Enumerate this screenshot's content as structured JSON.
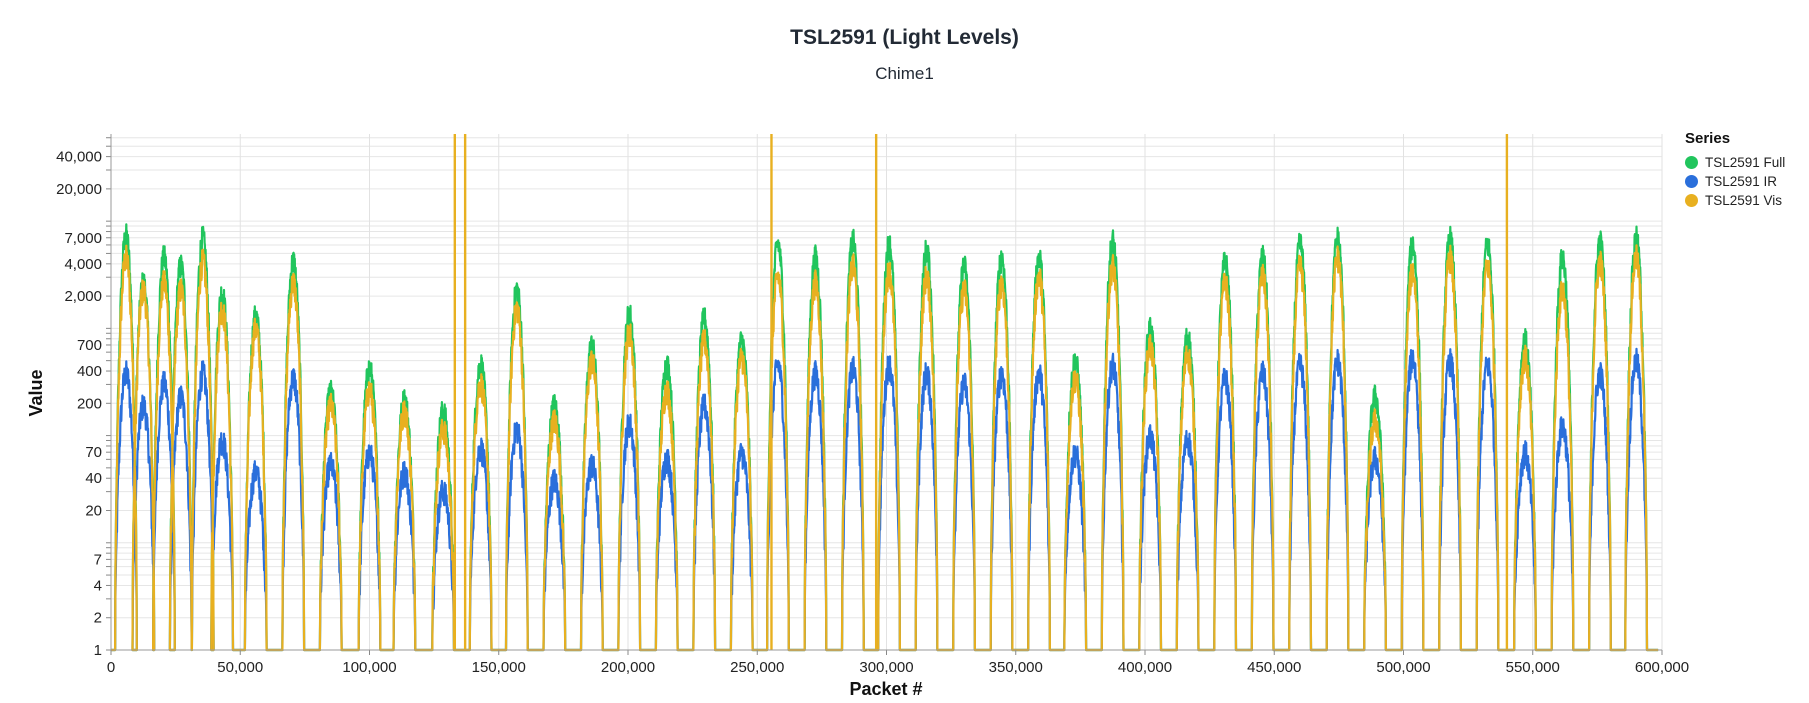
{
  "chart_data": {
    "type": "line",
    "title": "TSL2591 (Light Levels)",
    "subtitle": "Chime1",
    "xlabel": "Packet #",
    "ylabel": "Value",
    "y_scale": "log",
    "xlim": [
      0,
      600000
    ],
    "ylim": [
      1,
      65000
    ],
    "x_ticks": [
      0,
      50000,
      100000,
      150000,
      200000,
      250000,
      300000,
      350000,
      400000,
      450000,
      500000,
      550000,
      600000
    ],
    "x_tick_labels": [
      "0",
      "50,000",
      "100,000",
      "150,000",
      "200,000",
      "250,000",
      "300,000",
      "350,000",
      "400,000",
      "450,000",
      "500,000",
      "550,000",
      "600,000"
    ],
    "y_ticks": [
      1,
      2,
      4,
      7,
      20,
      40,
      70,
      200,
      400,
      700,
      2000,
      4000,
      7000,
      20000,
      40000
    ],
    "y_tick_labels": [
      "1",
      "2",
      "4",
      "7",
      "20",
      "40",
      "70",
      "200",
      "400",
      "700",
      "2,000",
      "4,000",
      "7,000",
      "20,000",
      "40,000"
    ],
    "grid": true,
    "legend": {
      "title": "Series",
      "placement": "right"
    },
    "series": [
      {
        "name": "TSL2591 Full",
        "color": "#21c55d"
      },
      {
        "name": "TSL2591 IR",
        "color": "#2a6fdb"
      },
      {
        "name": "TSL2591 Vis",
        "color": "#e8b020"
      }
    ],
    "daily_peaks": {
      "note_x": "center of each daytime cycle (packet #)",
      "x": [
        5800,
        12500,
        20500,
        27000,
        35500,
        43000,
        56000,
        70500,
        85000,
        100000,
        113500,
        128500,
        143000,
        157000,
        171500,
        186000,
        200500,
        215000,
        229500,
        244000,
        258000,
        272500,
        287000,
        301000,
        315500,
        330000,
        344500,
        359000,
        373000,
        387500,
        402000,
        416500,
        431000,
        445500,
        460000,
        474500,
        489000,
        503500,
        518000,
        532500,
        547000,
        561500,
        576000,
        590000
      ],
      "full": [
        9500,
        3500,
        6000,
        5000,
        9000,
        2800,
        1700,
        5500,
        330,
        550,
        280,
        220,
        600,
        3000,
        250,
        900,
        1800,
        600,
        1600,
        1000,
        8000,
        6000,
        8500,
        8000,
        7000,
        5000,
        6000,
        6000,
        650,
        8500,
        1300,
        1100,
        5500,
        6000,
        8000,
        9000,
        300,
        8000,
        9000,
        8000,
        1000,
        6000,
        8500,
        9000
      ],
      "ir": [
        500,
        250,
        400,
        300,
        500,
        120,
        60,
        450,
        70,
        90,
        60,
        40,
        100,
        150,
        50,
        70,
        170,
        80,
        250,
        90,
        600,
        500,
        550,
        600,
        500,
        400,
        500,
        500,
        90,
        600,
        130,
        120,
        450,
        500,
        600,
        650,
        80,
        700,
        650,
        600,
        90,
        160,
        500,
        650
      ],
      "vis": [
        6000,
        3000,
        3500,
        3000,
        5500,
        2000,
        1300,
        3500,
        250,
        350,
        220,
        150,
        400,
        2000,
        180,
        650,
        1200,
        350,
        1000,
        700,
        4000,
        3500,
        5000,
        4500,
        4000,
        3000,
        3500,
        4000,
        450,
        5000,
        900,
        750,
        3500,
        4000,
        5000,
        6000,
        180,
        4500,
        6000,
        5000,
        700,
        3000,
        5500,
        6000
      ]
    },
    "vis_spikes": {
      "note": "Vis series spikes to the top of the plot",
      "x": [
        133000,
        137000,
        255500,
        296000,
        540000
      ],
      "value": 65000
    }
  }
}
